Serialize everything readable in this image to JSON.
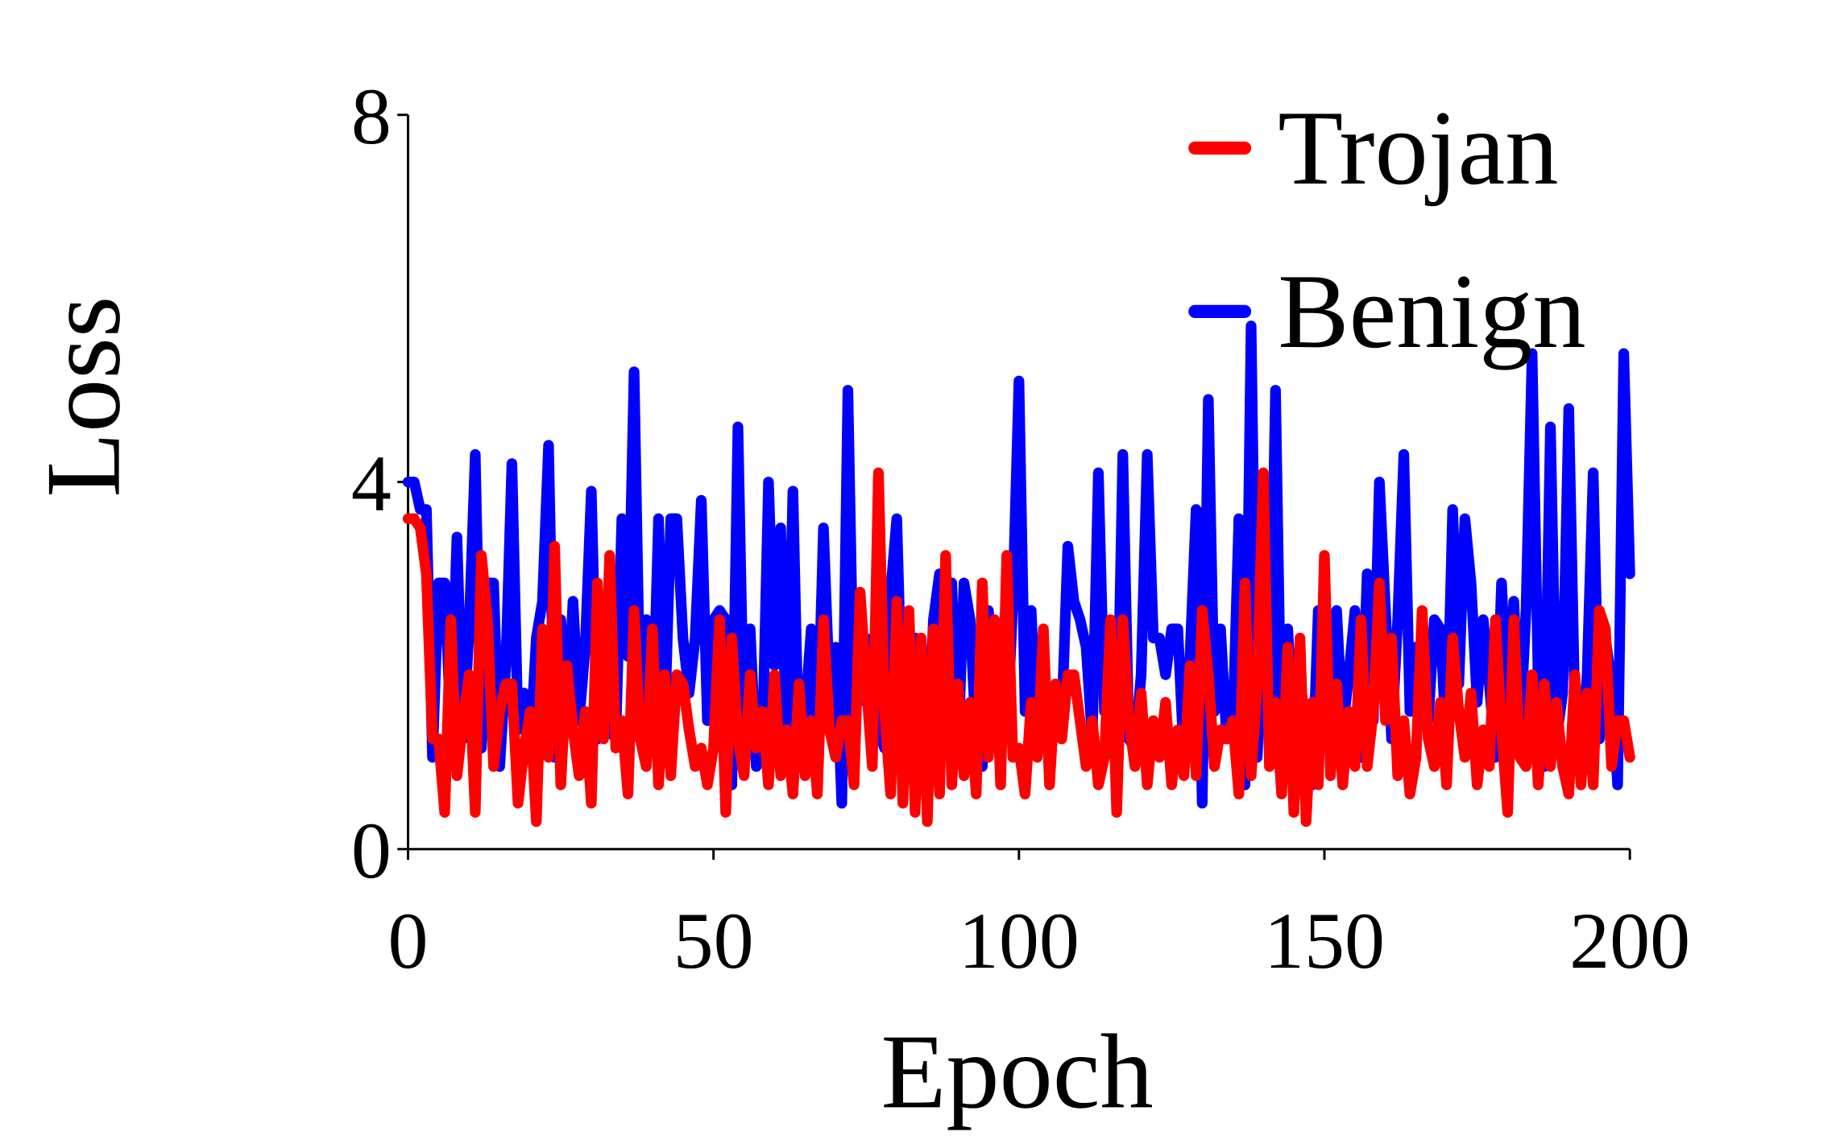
{
  "chart_data": {
    "type": "line",
    "xlabel": "Epoch",
    "ylabel": "Loss",
    "xlim": [
      0,
      200
    ],
    "xticks": [
      0,
      50,
      100,
      150,
      200
    ],
    "ylim": [
      0,
      8
    ],
    "yticks": [
      0,
      4,
      8
    ],
    "grid": false,
    "legend": "upper right",
    "x": [
      0,
      1,
      2,
      3,
      4,
      5,
      6,
      7,
      8,
      9,
      10,
      11,
      12,
      13,
      14,
      15,
      16,
      17,
      18,
      19,
      20,
      21,
      22,
      23,
      24,
      25,
      26,
      27,
      28,
      29,
      30,
      31,
      32,
      33,
      34,
      35,
      36,
      37,
      38,
      39,
      40,
      41,
      42,
      43,
      44,
      45,
      46,
      47,
      48,
      49,
      50,
      51,
      52,
      53,
      54,
      55,
      56,
      57,
      58,
      59,
      60,
      61,
      62,
      63,
      64,
      65,
      66,
      67,
      68,
      69,
      70,
      71,
      72,
      73,
      74,
      75,
      76,
      77,
      78,
      79,
      80,
      81,
      82,
      83,
      84,
      85,
      86,
      87,
      88,
      89,
      90,
      91,
      92,
      93,
      94,
      95,
      96,
      97,
      98,
      99,
      100,
      101,
      102,
      103,
      104,
      105,
      106,
      107,
      108,
      109,
      110,
      111,
      112,
      113,
      114,
      115,
      116,
      117,
      118,
      119,
      120,
      121,
      122,
      123,
      124,
      125,
      126,
      127,
      128,
      129,
      130,
      131,
      132,
      133,
      134,
      135,
      136,
      137,
      138,
      139,
      140,
      141,
      142,
      143,
      144,
      145,
      146,
      147,
      148,
      149,
      150,
      151,
      152,
      153,
      154,
      155,
      156,
      157,
      158,
      159,
      160,
      161,
      162,
      163,
      164,
      165,
      166,
      167,
      168,
      169,
      170,
      171,
      172,
      173,
      174,
      175,
      176,
      177,
      178,
      179,
      180,
      181,
      182,
      183,
      184,
      185,
      186,
      187,
      188,
      189,
      190,
      191,
      192,
      193,
      194,
      195,
      196,
      197,
      198,
      199,
      200
    ],
    "series": [
      {
        "name": "Trojan",
        "color": "#ff0000",
        "values": [
          3.6,
          3.6,
          3.5,
          3.0,
          1.2,
          1.2,
          0.4,
          2.5,
          0.8,
          1.4,
          1.9,
          0.4,
          3.2,
          2.5,
          0.9,
          1.5,
          1.8,
          1.8,
          0.5,
          1.1,
          1.5,
          0.3,
          2.4,
          1.0,
          3.3,
          0.7,
          2.0,
          1.3,
          0.8,
          1.5,
          0.5,
          2.9,
          1.2,
          3.2,
          1.1,
          1.4,
          0.6,
          2.6,
          1.2,
          0.9,
          2.4,
          0.7,
          1.9,
          0.8,
          1.9,
          1.8,
          1.3,
          0.9,
          1.1,
          0.7,
          1.1,
          2.5,
          0.4,
          2.3,
          1.2,
          0.8,
          1.9,
          1.1,
          1.5,
          0.7,
          1.9,
          0.8,
          1.3,
          0.6,
          1.8,
          0.8,
          1.4,
          0.6,
          2.5,
          1.3,
          1.0,
          1.4,
          1.4,
          0.7,
          2.8,
          1.8,
          0.9,
          4.1,
          1.5,
          0.6,
          2.7,
          0.5,
          2.6,
          0.4,
          2.3,
          0.3,
          2.4,
          0.6,
          3.2,
          0.7,
          1.8,
          0.8,
          1.6,
          0.6,
          2.9,
          1.0,
          2.5,
          0.7,
          3.2,
          1.0,
          1.1,
          0.6,
          1.6,
          1.0,
          2.4,
          0.7,
          1.8,
          1.2,
          1.9,
          1.9,
          1.4,
          0.9,
          1.4,
          0.7,
          1.0,
          2.5,
          0.4,
          2.5,
          1.4,
          0.9,
          1.7,
          0.7,
          1.4,
          1.0,
          1.6,
          0.7,
          1.3,
          0.8,
          2.0,
          0.8,
          2.6,
          1.9,
          0.9,
          1.3,
          1.2,
          1.4,
          0.6,
          2.9,
          0.8,
          1.8,
          4.1,
          0.9,
          1.6,
          0.6,
          2.2,
          0.4,
          2.3,
          0.3,
          1.6,
          0.7,
          3.2,
          0.8,
          1.8,
          0.7,
          1.5,
          0.9,
          2.5,
          0.9,
          1.5,
          2.9,
          1.4,
          2.3,
          0.8,
          1.4,
          0.6,
          1.0,
          2.6,
          1.2,
          0.9,
          1.6,
          0.7,
          2.3,
          1.5,
          1.0,
          1.7,
          0.7,
          1.3,
          0.9,
          2.5,
          1.3,
          0.4,
          2.5,
          1.0,
          0.9,
          1.9,
          0.7,
          1.8,
          0.9,
          1.6,
          0.9,
          0.6,
          1.9,
          0.7,
          1.7,
          0.7,
          2.6,
          2.4,
          0.9,
          1.4,
          1.4,
          1.0
        ]
      },
      {
        "name": "Benign",
        "color": "#0000ff",
        "values": [
          4.0,
          4.0,
          3.7,
          3.7,
          1.0,
          2.9,
          2.9,
          1.3,
          3.4,
          1.2,
          2.4,
          4.3,
          1.1,
          2.9,
          2.9,
          0.9,
          2.0,
          4.2,
          1.3,
          1.7,
          1.1,
          2.3,
          2.7,
          4.4,
          1.0,
          2.5,
          1.3,
          2.7,
          1.4,
          2.2,
          3.9,
          1.2,
          2.6,
          1.3,
          1.2,
          3.6,
          2.1,
          5.2,
          1.5,
          2.5,
          1.2,
          3.6,
          1.3,
          3.6,
          3.6,
          2.3,
          1.7,
          2.3,
          3.8,
          1.4,
          2.5,
          2.6,
          2.5,
          0.7,
          4.6,
          1.2,
          2.4,
          0.9,
          1.1,
          4.0,
          2.0,
          3.5,
          1.0,
          3.9,
          0.9,
          1.5,
          2.4,
          1.1,
          3.5,
          1.7,
          2.2,
          0.5,
          5.0,
          1.4,
          2.3,
          1.6,
          2.3,
          1.3,
          1.1,
          2.8,
          3.6,
          1.2,
          1.6,
          2.3,
          2.1,
          0.9,
          2.5,
          3.0,
          1.2,
          2.9,
          1.0,
          2.9,
          2.5,
          1.2,
          0.9,
          2.6,
          1.5,
          2.3,
          1.2,
          2.7,
          5.1,
          1.5,
          2.6,
          1.1,
          1.9,
          0.9,
          1.6,
          1.4,
          3.3,
          2.7,
          2.5,
          2.2,
          1.2,
          4.1,
          1.5,
          1.7,
          0.8,
          4.3,
          1.2,
          1.1,
          1.9,
          4.3,
          2.3,
          2.3,
          1.9,
          2.4,
          2.4,
          1.0,
          2.1,
          3.7,
          0.5,
          4.9,
          1.5,
          2.4,
          1.2,
          1.3,
          3.6,
          0.7,
          5.7,
          1.0,
          2.4,
          1.3,
          5.0,
          0.9,
          2.4,
          1.1,
          1.9,
          1.2,
          0.7,
          2.6,
          1.8,
          1.1,
          2.6,
          1.3,
          1.9,
          2.6,
          1.0,
          3.0,
          1.4,
          4.0,
          2.6,
          1.2,
          2.5,
          4.3,
          1.5,
          2.2,
          1.6,
          1.4,
          2.5,
          2.4,
          1.1,
          3.7,
          1.8,
          3.6,
          2.9,
          1.6,
          2.5,
          1.8,
          1.0,
          2.9,
          1.4,
          2.7,
          1.2,
          2.6,
          5.4,
          1.8,
          0.9,
          4.6,
          1.2,
          1.7,
          4.8,
          1.5,
          0.9,
          1.9,
          4.1,
          1.2,
          2.3,
          1.8,
          0.7,
          5.4,
          3.0
        ]
      }
    ]
  }
}
